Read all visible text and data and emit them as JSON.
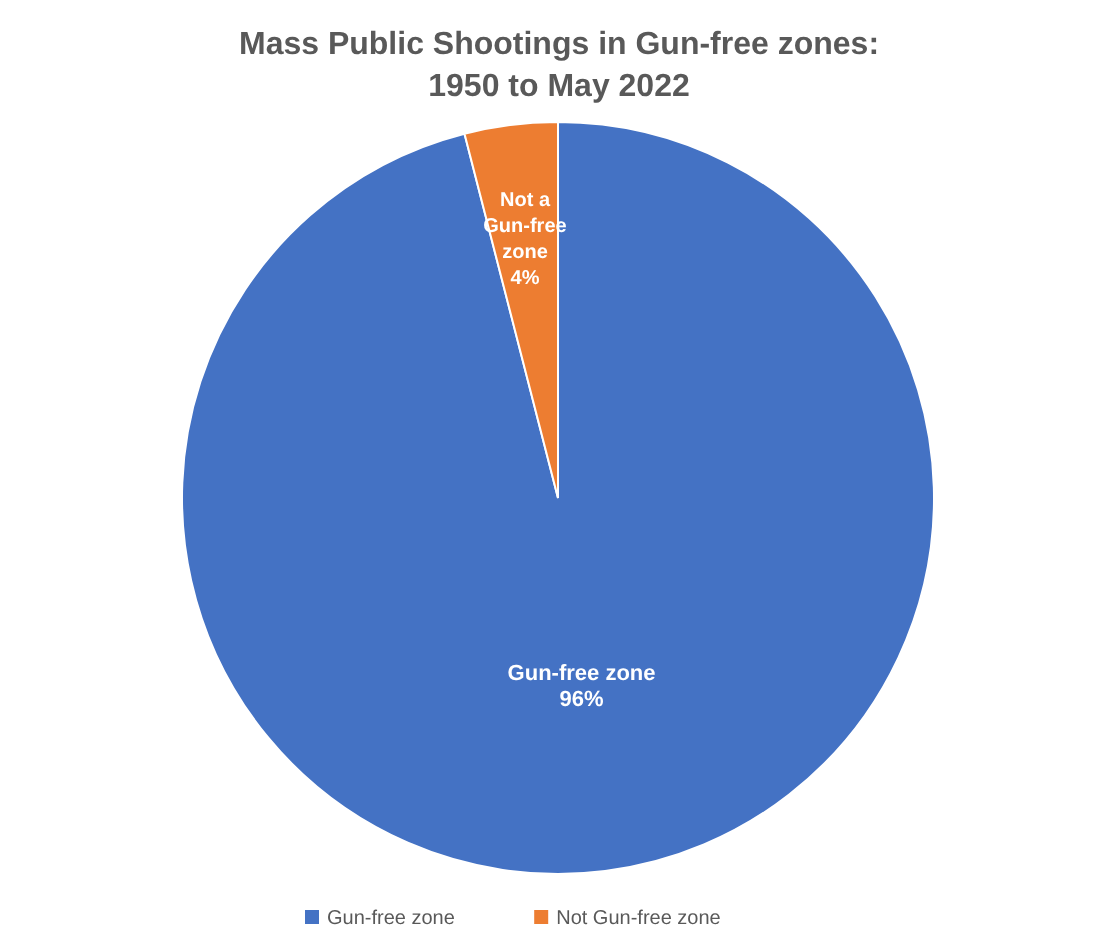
{
  "chart_data": {
    "type": "pie",
    "title": "Mass Public Shootings in Gun-free zones: 1950 to May 2022",
    "categories": [
      "Gun-free zone",
      "Not Gun-free zone"
    ],
    "values": [
      96,
      4
    ],
    "colors": [
      "#4472c4",
      "#ed7d31"
    ],
    "value_labels": [
      "Gun-free zone\n96%",
      "Not a\nGun-free\nzone\n4%"
    ],
    "legend": "bottom"
  }
}
